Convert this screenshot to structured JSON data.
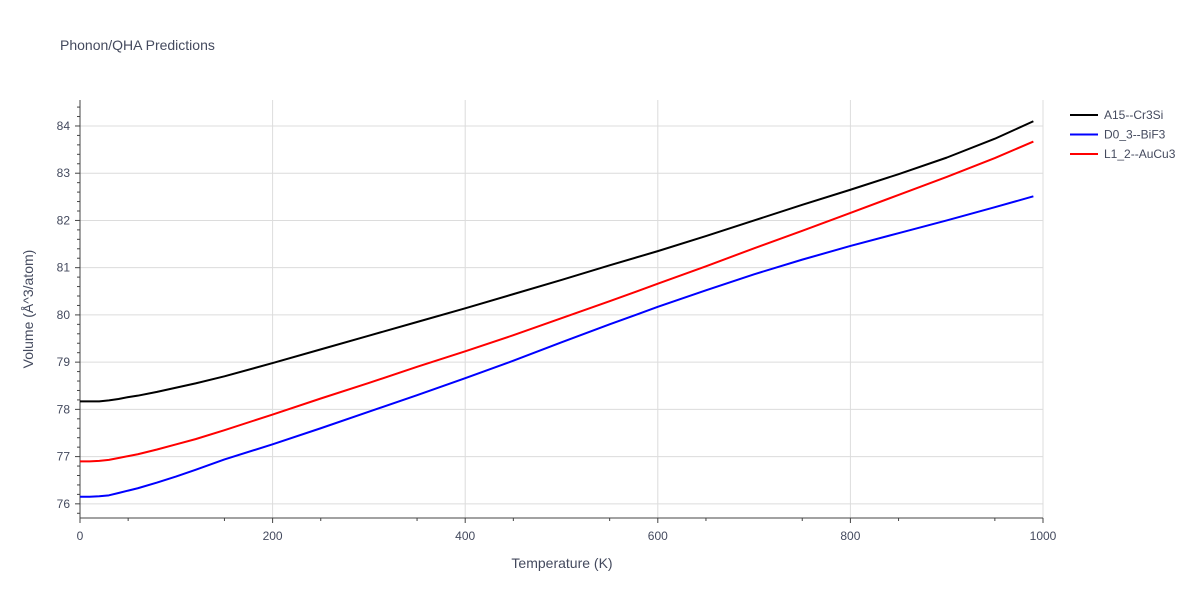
{
  "chart_data": {
    "type": "line",
    "title": "Phonon/QHA Predictions",
    "xlabel": "Temperature (K)",
    "ylabel": "Volume (Å^3/atom)",
    "xlim": [
      0,
      1000
    ],
    "ylim": [
      75.7,
      84.55
    ],
    "x_ticks": [
      0,
      200,
      400,
      600,
      800,
      1000
    ],
    "y_ticks": [
      76,
      77,
      78,
      79,
      80,
      81,
      82,
      83,
      84
    ],
    "grid": true,
    "legend_position": "top-right",
    "series": [
      {
        "name": "A15--Cr3Si",
        "color": "#000000",
        "x": [
          0,
          10,
          20,
          30,
          40,
          50,
          60,
          80,
          100,
          120,
          150,
          200,
          250,
          300,
          350,
          400,
          450,
          500,
          550,
          600,
          650,
          700,
          750,
          800,
          850,
          900,
          950,
          990
        ],
        "y": [
          78.17,
          78.17,
          78.17,
          78.19,
          78.22,
          78.26,
          78.29,
          78.37,
          78.46,
          78.55,
          78.7,
          78.98,
          79.27,
          79.56,
          79.85,
          80.14,
          80.44,
          80.74,
          81.05,
          81.35,
          81.67,
          82.0,
          82.33,
          82.65,
          82.98,
          83.33,
          83.73,
          84.1
        ]
      },
      {
        "name": "D0_3--BiF3",
        "color": "#0000ff",
        "x": [
          0,
          10,
          20,
          30,
          40,
          50,
          60,
          80,
          100,
          120,
          150,
          200,
          250,
          300,
          350,
          400,
          450,
          500,
          550,
          600,
          650,
          700,
          750,
          800,
          850,
          900,
          950,
          990
        ],
        "y": [
          76.15,
          76.15,
          76.16,
          76.18,
          76.23,
          76.28,
          76.33,
          76.45,
          76.58,
          76.72,
          76.94,
          77.26,
          77.6,
          77.95,
          78.3,
          78.66,
          79.03,
          79.42,
          79.8,
          80.17,
          80.52,
          80.86,
          81.17,
          81.46,
          81.73,
          82.0,
          82.28,
          82.51
        ]
      },
      {
        "name": "L1_2--AuCu3",
        "color": "#ff0000",
        "x": [
          0,
          10,
          20,
          30,
          40,
          50,
          60,
          80,
          100,
          120,
          150,
          200,
          250,
          300,
          350,
          400,
          450,
          500,
          550,
          600,
          650,
          700,
          750,
          800,
          850,
          900,
          950,
          990
        ],
        "y": [
          76.9,
          76.9,
          76.91,
          76.93,
          76.97,
          77.01,
          77.05,
          77.15,
          77.26,
          77.37,
          77.56,
          77.89,
          78.23,
          78.56,
          78.9,
          79.23,
          79.57,
          79.93,
          80.29,
          80.66,
          81.03,
          81.41,
          81.78,
          82.16,
          82.54,
          82.92,
          83.32,
          83.67
        ]
      }
    ]
  }
}
